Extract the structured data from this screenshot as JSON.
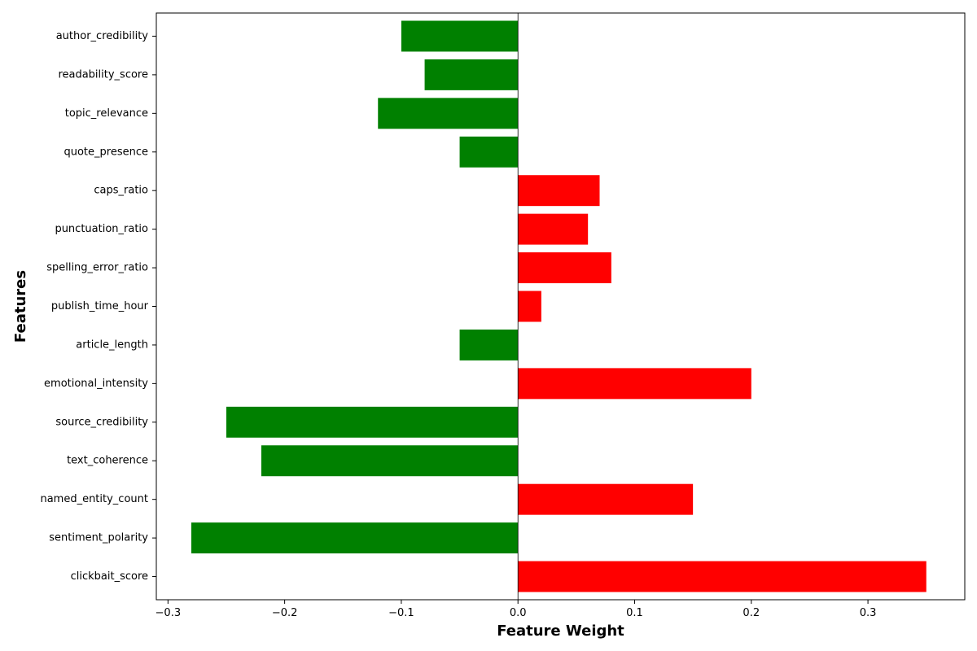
{
  "chart_data": {
    "type": "bar",
    "orientation": "horizontal",
    "title": "",
    "xlabel": "Feature Weight",
    "ylabel": "Features",
    "categories": [
      "clickbait_score",
      "sentiment_polarity",
      "named_entity_count",
      "text_coherence",
      "source_credibility",
      "emotional_intensity",
      "article_length",
      "publish_time_hour",
      "spelling_error_ratio",
      "punctuation_ratio",
      "caps_ratio",
      "quote_presence",
      "topic_relevance",
      "readability_score",
      "author_credibility"
    ],
    "values": [
      0.35,
      -0.28,
      0.15,
      -0.22,
      -0.25,
      0.2,
      -0.05,
      0.02,
      0.08,
      0.06,
      0.07,
      -0.05,
      -0.12,
      -0.08,
      -0.1
    ],
    "xlim": [
      -0.31,
      0.383
    ],
    "xticks": [
      -0.3,
      -0.2,
      -0.1,
      0.0,
      0.1,
      0.2,
      0.3
    ],
    "xtick_labels": [
      "−0.3",
      "−0.2",
      "−0.1",
      "0.0",
      "0.1",
      "0.2",
      "0.3"
    ],
    "grid": false,
    "zero_line": true,
    "colors": {
      "positive": "#ff0000",
      "negative": "#008000",
      "axis": "#000000"
    }
  }
}
